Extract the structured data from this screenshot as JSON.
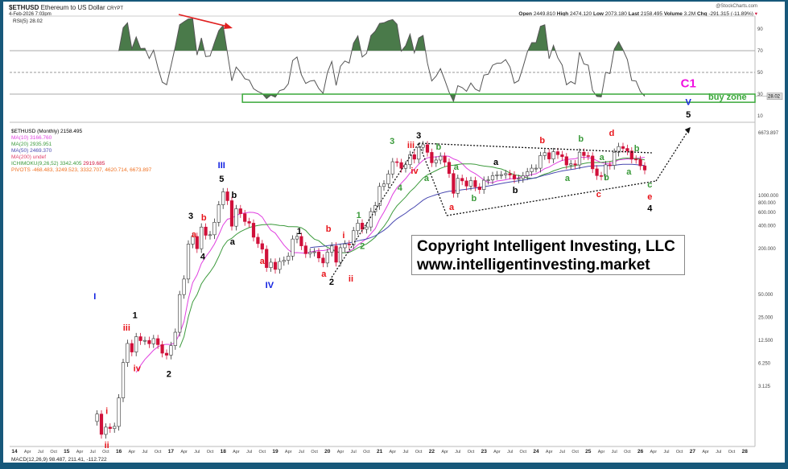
{
  "header": {
    "symbol": "$ETHUSD",
    "name": "Ethereum to US Dollar",
    "exchange": "CRYPT",
    "timestamp": "4-Feb-2026 7:03pm",
    "source": "@StockCharts.com",
    "open_label": "Open",
    "open": "2449.810",
    "high_label": "High",
    "high": "2474.120",
    "low_label": "Low",
    "low": "2073.180",
    "last_label": "Last",
    "last": "2158.495",
    "volume_label": "Volume",
    "volume": "3.2M",
    "chg_label": "Chg",
    "chg": "-291.315 (-11.89%)"
  },
  "rsi_panel": {
    "label": "RSI(5) 28.02",
    "current_tag": "28.02",
    "ticks": [
      90,
      70,
      50,
      30,
      10
    ],
    "buy_zone_label": "buy zone"
  },
  "legend": {
    "title": "$ETHUSD (Monthly) 2158.495",
    "ma10": "MA(10) 3166.760",
    "ma20": "MA(20) 2935.951",
    "ma50": "MA(50) 2469.370",
    "ma200": "MA(200) undef",
    "ichimoku": "ICHIMOKU(9,26,52) 3342.405",
    "ichimoku_2": "2919.685",
    "pivots": "PIVOTS -468.483, 3249.523, 3332.707, 4620.714, 6673.897"
  },
  "macd_label": "MACD(12,26,9) 98.487, 211.41, -112.722",
  "copyright": {
    "line1": "Copyright Intelligent Investing, LLC",
    "line2": "www.intelligentinvesting.market"
  },
  "colors": {
    "ma10": "#e040e0",
    "ma20": "#3c9a3c",
    "ma50": "#4848b0",
    "down": "#d0103a",
    "up": "#ffffff",
    "rsi_fill": "#4a7a4a",
    "buy_zone": "#3aa83a",
    "frame": "#17587a"
  },
  "chart_data": {
    "type": "candlestick",
    "frequency": "monthly",
    "y_scale": "log",
    "y_ticks": [
      6673.897,
      1000,
      800,
      600,
      400,
      200,
      50,
      25,
      12.5,
      6.25,
      3.125
    ],
    "x_ticks_years": [
      "14",
      "15",
      "16",
      "17",
      "18",
      "19",
      "20",
      "21",
      "22",
      "23",
      "24",
      "25",
      "26",
      "27",
      "28"
    ],
    "x_ticks_months": [
      "Apr",
      "Jul",
      "Oct"
    ],
    "closes_by_year": {
      "2015": [
        null,
        null,
        null,
        null,
        null,
        null,
        null,
        1.35,
        0.73,
        0.91,
        0.87,
        0.93
      ],
      "2016": [
        2.2,
        6.4,
        11.4,
        8.8,
        14,
        12.4,
        12.5,
        11.3,
        13.2,
        11,
        8.5,
        8
      ],
      "2017": [
        10.7,
        16,
        50,
        80,
        230,
        290,
        200,
        385,
        300,
        305,
        445,
        755
      ],
      "2018": [
        1118,
        855,
        395,
        670,
        577,
        455,
        433,
        283,
        233,
        197,
        113,
        133
      ],
      "2019": [
        107,
        136,
        141,
        160,
        268,
        290,
        218,
        172,
        180,
        182,
        151,
        130
      ],
      "2020": [
        180,
        217,
        133,
        206,
        231,
        225,
        345,
        434,
        360,
        386,
        615,
        737
      ],
      "2021": [
        1314,
        1417,
        1918,
        2773,
        2707,
        2275,
        2536,
        3434,
        3001,
        4288,
        4631,
        3683
      ],
      "2022": [
        2688,
        2919,
        3282,
        2730,
        1942,
        1067,
        1679,
        1554,
        1328,
        1572,
        1296,
        1196
      ],
      "2023": [
        1585,
        1605,
        1822,
        1870,
        1874,
        1934,
        1856,
        1646,
        1671,
        1815,
        2052,
        2282
      ],
      "2024": [
        2283,
        3340,
        3647,
        3014,
        3760,
        3433,
        3232,
        2513,
        2603,
        2518,
        3705,
        3337
      ],
      "2025": [
        3300,
        2237,
        1822,
        1794,
        2528,
        2486,
        3698,
        4390,
        4145,
        3847,
        3000,
        2970
      ],
      "2026": [
        2449.81,
        2158.495
      ]
    },
    "wave_labels": [
      {
        "t": "I",
        "c": "blue",
        "date": 2015.54,
        "p": 48
      },
      {
        "t": "i",
        "c": "red",
        "date": 2015.77,
        "p": 1.5
      },
      {
        "t": "ii",
        "c": "red",
        "date": 2015.77,
        "p": 0.53
      },
      {
        "t": "iii",
        "c": "red",
        "date": 2016.15,
        "p": 18.5
      },
      {
        "t": "1",
        "c": "black",
        "date": 2016.31,
        "p": 27
      },
      {
        "t": "iv",
        "c": "red",
        "date": 2016.35,
        "p": 5.4
      },
      {
        "t": "2",
        "c": "black",
        "date": 2016.96,
        "p": 4.6
      },
      {
        "t": "3",
        "c": "black",
        "date": 2017.38,
        "p": 545
      },
      {
        "t": "b",
        "c": "red",
        "date": 2017.63,
        "p": 519
      },
      {
        "t": "a",
        "c": "red",
        "date": 2017.44,
        "p": 310
      },
      {
        "t": "4",
        "c": "black",
        "date": 2017.61,
        "p": 160
      },
      {
        "t": "III",
        "c": "blue",
        "date": 2017.97,
        "p": 2520
      },
      {
        "t": "5",
        "c": "black",
        "date": 2017.97,
        "p": 1670
      },
      {
        "t": "b",
        "c": "black",
        "date": 2018.21,
        "p": 1020
      },
      {
        "t": "a",
        "c": "black",
        "date": 2018.18,
        "p": 250
      },
      {
        "t": "a",
        "c": "red",
        "date": 2018.75,
        "p": 140
      },
      {
        "t": "IV",
        "c": "blue",
        "date": 2018.89,
        "p": 67
      },
      {
        "t": "1",
        "c": "black",
        "date": 2019.46,
        "p": 343
      },
      {
        "t": "b",
        "c": "red",
        "date": 2020.02,
        "p": 370
      },
      {
        "t": "a",
        "c": "red",
        "date": 2019.93,
        "p": 94
      },
      {
        "t": "2",
        "c": "black",
        "date": 2020.08,
        "p": 74
      },
      {
        "t": "i",
        "c": "red",
        "date": 2020.31,
        "p": 305
      },
      {
        "t": "ii",
        "c": "red",
        "date": 2020.45,
        "p": 82
      },
      {
        "t": "1",
        "c": "green",
        "date": 2020.6,
        "p": 560
      },
      {
        "t": "2",
        "c": "green",
        "date": 2020.67,
        "p": 220
      },
      {
        "t": "3",
        "c": "green",
        "date": 2021.24,
        "p": 5220
      },
      {
        "t": "4",
        "c": "green",
        "date": 2021.39,
        "p": 1280
      },
      {
        "t": "iii",
        "c": "red",
        "date": 2021.6,
        "p": 4630
      },
      {
        "t": "iv",
        "c": "red",
        "date": 2021.67,
        "p": 2120
      },
      {
        "t": "3",
        "c": "black",
        "date": 2021.75,
        "p": 6200
      },
      {
        "t": "b",
        "c": "green",
        "date": 2022.13,
        "p": 4400
      },
      {
        "t": "a",
        "c": "green",
        "date": 2021.9,
        "p": 1710
      },
      {
        "t": "a",
        "c": "green",
        "date": 2022.47,
        "p": 2400
      },
      {
        "t": "a",
        "c": "red",
        "date": 2022.38,
        "p": 710
      },
      {
        "t": "b",
        "c": "green",
        "date": 2022.81,
        "p": 930
      },
      {
        "t": "a",
        "c": "black",
        "date": 2023.23,
        "p": 2780
      },
      {
        "t": "b",
        "c": "black",
        "date": 2023.6,
        "p": 1190
      },
      {
        "t": "b",
        "c": "red",
        "date": 2024.12,
        "p": 5350
      },
      {
        "t": "b",
        "c": "green",
        "date": 2024.86,
        "p": 5600
      },
      {
        "t": "a",
        "c": "green",
        "date": 2024.6,
        "p": 1710
      },
      {
        "t": "a",
        "c": "green",
        "date": 2025.26,
        "p": 3200
      },
      {
        "t": "d",
        "c": "red",
        "date": 2025.45,
        "p": 6670
      },
      {
        "t": "c",
        "c": "red",
        "date": 2025.2,
        "p": 1050
      },
      {
        "t": "b",
        "c": "green",
        "date": 2025.35,
        "p": 1750
      },
      {
        "t": "b",
        "c": "green",
        "date": 2025.93,
        "p": 4200
      },
      {
        "t": "a",
        "c": "green",
        "date": 2025.78,
        "p": 2070
      },
      {
        "t": "c",
        "c": "green",
        "date": 2026.18,
        "p": 1400
      },
      {
        "t": "e",
        "c": "red",
        "date": 2026.18,
        "p": 975
      },
      {
        "t": "4",
        "c": "black",
        "date": 2026.18,
        "p": 690
      },
      {
        "t": "5",
        "c": "black",
        "date": 2026.92,
        "p": 11700
      },
      {
        "t": "V",
        "c": "blue",
        "date": 2026.92,
        "p": 17000
      },
      {
        "t": "C1",
        "c": "magenta",
        "date": 2026.92,
        "p": 29000
      }
    ],
    "trendlines": [
      {
        "from": [
          2020.08,
          84
        ],
        "to": [
          2021.75,
          4860
        ]
      },
      {
        "from": [
          2021.75,
          4860
        ],
        "to": [
          2022.29,
          545
        ]
      },
      {
        "from": [
          2021.75,
          4860
        ],
        "to": [
          2026.22,
          3630
        ]
      },
      {
        "from": [
          2022.29,
          545
        ],
        "to": [
          2026.3,
          1550
        ]
      },
      {
        "from": [
          2026.3,
          1550
        ],
        "to": [
          2026.96,
          7900
        ],
        "arrow": true
      }
    ],
    "buy_zone_rsi": [
      22.5,
      30
    ],
    "buy_zone_from": 2018.37
  }
}
